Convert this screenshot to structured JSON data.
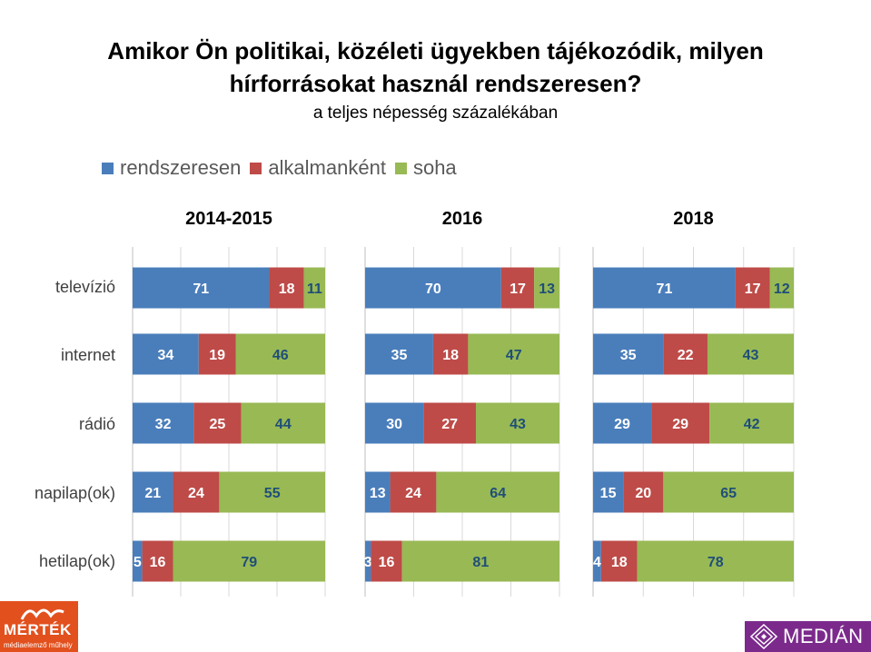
{
  "title_line1": "Amikor Ön politikai, közéleti ügyekben tájékozódik, milyen",
  "title_line2": "hírforrásokat használ rendszeresen?",
  "subtitle": "a teljes népesség százalékában",
  "colors": {
    "rendszeresen": "#4a7ebb",
    "alkalmanként": "#be4b48",
    "soha": "#98b954"
  },
  "chart_data": {
    "type": "bar",
    "orientation": "horizontal-stacked",
    "categories": [
      "televízió",
      "internet",
      "rádió",
      "napilap(ok)",
      "hetilap(ok)"
    ],
    "legend": [
      "rendszeresen",
      "alkalmanként",
      "soha"
    ],
    "legend_position": "top-left",
    "xlim": [
      0,
      100
    ],
    "grid": true,
    "panels": [
      {
        "title": "2014-2015",
        "series": [
          {
            "name": "rendszeresen",
            "values": [
              71,
              34,
              32,
              21,
              5
            ]
          },
          {
            "name": "alkalmanként",
            "values": [
              18,
              19,
              25,
              24,
              16
            ]
          },
          {
            "name": "soha",
            "values": [
              11,
              46,
              44,
              55,
              79
            ]
          }
        ]
      },
      {
        "title": "2016",
        "series": [
          {
            "name": "rendszeresen",
            "values": [
              70,
              35,
              30,
              13,
              3
            ]
          },
          {
            "name": "alkalmanként",
            "values": [
              17,
              18,
              27,
              24,
              16
            ]
          },
          {
            "name": "soha",
            "values": [
              13,
              47,
              43,
              64,
              81
            ]
          }
        ]
      },
      {
        "title": "2018",
        "series": [
          {
            "name": "rendszeresen",
            "values": [
              71,
              35,
              29,
              15,
              4
            ]
          },
          {
            "name": "alkalmanként",
            "values": [
              17,
              22,
              29,
              20,
              18
            ]
          },
          {
            "name": "soha",
            "values": [
              12,
              43,
              42,
              65,
              78
            ]
          }
        ]
      }
    ]
  },
  "logos": {
    "left_name": "MÉRTÉK",
    "left_tagline": "médiaelemző műhely",
    "right_name": "MEDIÁN"
  }
}
